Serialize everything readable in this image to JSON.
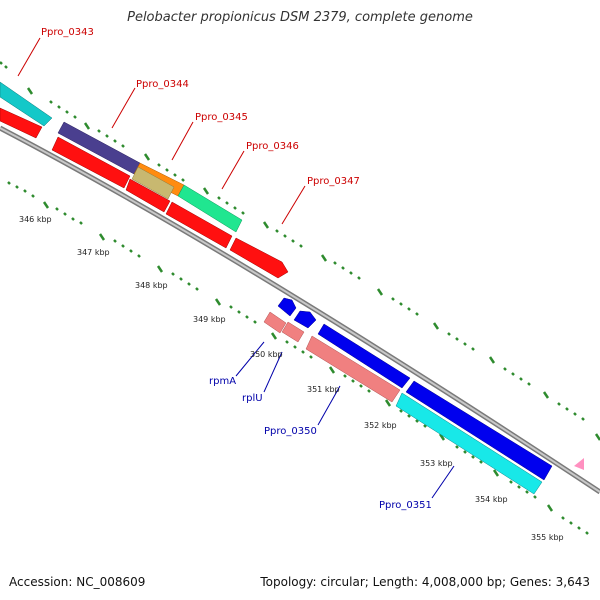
{
  "title": "Pelobacter propionicus DSM 2379, complete genome",
  "footer": {
    "accession": "Accession: NC_008609",
    "topology": "Topology: circular; Length: 4,008,000 bp; Genes: 3,643"
  },
  "colors": {
    "red_label": "#cc0000",
    "blue_label": "#0000aa",
    "tick": "#2e8b2e",
    "backbone": "#888888"
  },
  "gene_labels": [
    {
      "id": "ppro0343",
      "text": "Ppro_0343",
      "kind": "red"
    },
    {
      "id": "ppro0344",
      "text": "Ppro_0344",
      "kind": "red"
    },
    {
      "id": "ppro0345",
      "text": "Ppro_0345",
      "kind": "red"
    },
    {
      "id": "ppro0346",
      "text": "Ppro_0346",
      "kind": "red"
    },
    {
      "id": "ppro0347",
      "text": "Ppro_0347",
      "kind": "red"
    },
    {
      "id": "rpmA",
      "text": "rpmA",
      "kind": "blue"
    },
    {
      "id": "rplU",
      "text": "rplU",
      "kind": "blue"
    },
    {
      "id": "ppro0350",
      "text": "Ppro_0350",
      "kind": "blue"
    },
    {
      "id": "ppro0351",
      "text": "Ppro_0351",
      "kind": "blue"
    }
  ],
  "kbp_labels": [
    "346 kbp",
    "347 kbp",
    "348 kbp",
    "349 kbp",
    "350 kbp",
    "351 kbp",
    "352 kbp",
    "353 kbp",
    "354 kbp",
    "355 kbp"
  ]
}
